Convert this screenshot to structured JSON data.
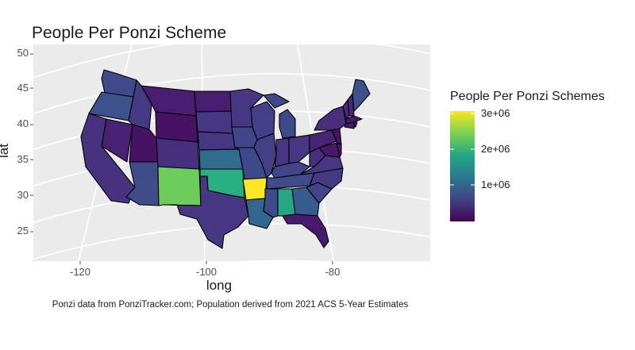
{
  "title": "People Per Ponzi Scheme",
  "caption": "Ponzi data from PonziTracker.com; Population derived from 2021 ACS 5-Year Estimates",
  "axes": {
    "xlabel": "long",
    "ylabel": "lat",
    "x_ticks": [
      "-120",
      "-100",
      "-80"
    ],
    "y_ticks": [
      "50",
      "45",
      "40",
      "35",
      "30",
      "25"
    ],
    "xlim": [
      -127,
      -67
    ],
    "ylim": [
      21,
      51
    ]
  },
  "legend": {
    "title": "People Per Ponzi Schemes",
    "ticks": [
      "3e+06",
      "2e+06",
      "1e+06"
    ],
    "colors": [
      "#fde725",
      "#7ad151",
      "#22a884",
      "#2a788e",
      "#414487",
      "#440154"
    ]
  },
  "chart_data": {
    "type": "map",
    "variable": "People Per Ponzi Schemes",
    "values": [
      {
        "state": "Arkansas",
        "value": 3000000
      },
      {
        "state": "New Mexico",
        "value": 2100000
      },
      {
        "state": "Oklahoma",
        "value": 1700000
      },
      {
        "state": "Kansas",
        "value": 1450000
      },
      {
        "state": "Alabama",
        "value": 1500000
      },
      {
        "state": "Louisiana",
        "value": 1050000
      },
      {
        "state": "Georgia",
        "value": 850000
      },
      {
        "state": "Mississippi",
        "value": 700000
      },
      {
        "state": "Maine",
        "value": 650000
      },
      {
        "state": "Washington",
        "value": 650000
      },
      {
        "state": "Iowa",
        "value": 600000
      },
      {
        "state": "Kentucky",
        "value": 600000
      },
      {
        "state": "Arizona",
        "value": 550000
      },
      {
        "state": "South Carolina",
        "value": 550000
      },
      {
        "state": "Oregon",
        "value": 500000
      },
      {
        "state": "Tennessee",
        "value": 500000
      },
      {
        "state": "Missouri",
        "value": 500000
      },
      {
        "state": "Michigan",
        "value": 500000
      },
      {
        "state": "Wisconsin",
        "value": 450000
      },
      {
        "state": "Illinois",
        "value": 450000
      },
      {
        "state": "North Carolina",
        "value": 450000
      },
      {
        "state": "Minnesota",
        "value": 400000
      },
      {
        "state": "Nebraska",
        "value": 400000
      },
      {
        "state": "South Dakota",
        "value": 400000
      },
      {
        "state": "Indiana",
        "value": 400000
      },
      {
        "state": "Ohio",
        "value": 400000
      },
      {
        "state": "Texas",
        "value": 400000
      },
      {
        "state": "Virginia",
        "value": 400000
      },
      {
        "state": "Pennsylvania",
        "value": 350000
      },
      {
        "state": "New York",
        "value": 350000
      },
      {
        "state": "West Virginia",
        "value": 350000
      },
      {
        "state": "Idaho",
        "value": 350000
      },
      {
        "state": "Colorado",
        "value": 300000
      },
      {
        "state": "Vermont",
        "value": 300000
      },
      {
        "state": "New Hampshire",
        "value": 300000
      },
      {
        "state": "Nevada",
        "value": 250000
      },
      {
        "state": "California",
        "value": 250000
      },
      {
        "state": "Florida",
        "value": 200000
      },
      {
        "state": "Montana",
        "value": 200000
      },
      {
        "state": "North Dakota",
        "value": 200000
      },
      {
        "state": "Utah",
        "value": 150000
      },
      {
        "state": "Wyoming",
        "value": 150000
      },
      {
        "state": "New Jersey",
        "value": 150000
      },
      {
        "state": "Maryland",
        "value": 200000
      },
      {
        "state": "Delaware",
        "value": 200000
      },
      {
        "state": "Massachusetts",
        "value": 250000
      },
      {
        "state": "Connecticut",
        "value": 250000
      },
      {
        "state": "Rhode Island",
        "value": 200000
      }
    ]
  }
}
